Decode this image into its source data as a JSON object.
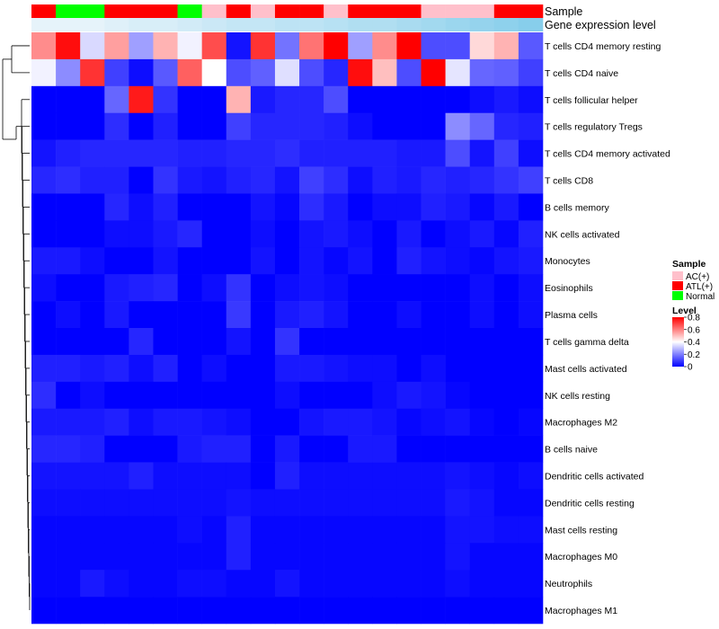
{
  "chart_data": {
    "type": "heatmap",
    "title": "",
    "rows": [
      "T cells CD4 memory resting",
      "T cells CD4 naive",
      "T cells follicular helper",
      "T cells regulatory  Tregs",
      "T cells CD4 memory activated",
      "T cells CD8",
      "B cells memory",
      "NK cells activated",
      "Monocytes",
      "Eosinophils",
      "Plasma cells",
      "T cells gamma delta",
      "Mast cells activated",
      "NK cells resting",
      "Macrophages M2",
      "B cells naive",
      "Dendritic cells activated",
      "Dendritic cells resting",
      "Mast cells resting",
      "Macrophages M0",
      "Neutrophils",
      "Macrophages M1"
    ],
    "column_annotations": {
      "sample": {
        "label": "Sample",
        "values": [
          "ATL(+)",
          "Normal",
          "Normal",
          "ATL(+)",
          "ATL(+)",
          "ATL(+)",
          "Normal",
          "AC(+)",
          "ATL(+)",
          "AC(+)",
          "ATL(+)",
          "ATL(+)",
          "AC(+)",
          "ATL(+)",
          "ATL(+)",
          "ATL(+)",
          "AC(+)",
          "AC(+)",
          "AC(+)",
          "ATL(+)",
          "ATL(+)"
        ]
      },
      "gene_expression": {
        "label": "Gene expression level",
        "values": [
          0.15,
          0.15,
          0.15,
          0.2,
          0.25,
          0.25,
          0.3,
          0.35,
          0.4,
          0.4,
          0.45,
          0.45,
          0.5,
          0.55,
          0.55,
          0.6,
          0.65,
          0.7,
          0.75,
          0.8,
          0.85
        ]
      }
    },
    "values": [
      [
        0.58,
        0.78,
        0.34,
        0.55,
        0.25,
        0.52,
        0.38,
        0.68,
        0.03,
        0.72,
        0.18,
        0.62,
        0.8,
        0.25,
        0.58,
        0.8,
        0.12,
        0.12,
        0.46,
        0.52,
        0.14
      ],
      [
        0.38,
        0.22,
        0.72,
        0.1,
        0.02,
        0.14,
        0.65,
        0.4,
        0.12,
        0.15,
        0.35,
        0.12,
        0.06,
        0.78,
        0.5,
        0.12,
        0.8,
        0.36,
        0.16,
        0.15,
        0.1
      ],
      [
        0,
        0,
        0,
        0.16,
        0.76,
        0.08,
        0,
        0,
        0.52,
        0.04,
        0.06,
        0.06,
        0.12,
        0,
        0,
        0,
        0,
        0,
        0.02,
        0.04,
        0.02
      ],
      [
        0,
        0,
        0,
        0.07,
        0,
        0.05,
        0,
        0,
        0.1,
        0.06,
        0.06,
        0.06,
        0.05,
        0.02,
        0,
        0,
        0,
        0.22,
        0.16,
        0.06,
        0.05
      ],
      [
        0.03,
        0.05,
        0.06,
        0.06,
        0.06,
        0.06,
        0.05,
        0.05,
        0.06,
        0.06,
        0.07,
        0.05,
        0.05,
        0.05,
        0.05,
        0.04,
        0.04,
        0.12,
        0.03,
        0.1,
        0.02
      ],
      [
        0.06,
        0.07,
        0.05,
        0.05,
        0,
        0.08,
        0.04,
        0.03,
        0.05,
        0.06,
        0.03,
        0.1,
        0.07,
        0.02,
        0.05,
        0.04,
        0.06,
        0.05,
        0.06,
        0.08,
        0.1
      ],
      [
        0,
        0,
        0,
        0.06,
        0.02,
        0.05,
        0,
        0,
        0,
        0.03,
        0.01,
        0.07,
        0.04,
        0,
        0.02,
        0.02,
        0.05,
        0.04,
        0.01,
        0.04,
        0
      ],
      [
        0,
        0,
        0,
        0.02,
        0.02,
        0.04,
        0.06,
        0,
        0,
        0.02,
        0,
        0.03,
        0.04,
        0.02,
        0,
        0.04,
        0,
        0.02,
        0.04,
        0.01,
        0.05
      ],
      [
        0.04,
        0.04,
        0.02,
        0,
        0,
        0.03,
        0,
        0,
        0,
        0.03,
        0,
        0.03,
        0.01,
        0.03,
        0,
        0.05,
        0.03,
        0.02,
        0.01,
        0.03,
        0.04
      ],
      [
        0.02,
        0,
        0,
        0.04,
        0.05,
        0.06,
        0,
        0.02,
        0.08,
        0,
        0.02,
        0.03,
        0.02,
        0,
        0,
        0,
        0,
        0,
        0.02,
        0,
        0.02
      ],
      [
        0,
        0.02,
        0,
        0.04,
        0,
        0,
        0,
        0,
        0.09,
        0,
        0.04,
        0.05,
        0.03,
        0,
        0,
        0.02,
        0,
        0,
        0.02,
        0,
        0.02
      ],
      [
        0,
        0,
        0,
        0,
        0.06,
        0,
        0,
        0,
        0.03,
        0,
        0.08,
        0,
        0,
        0,
        0,
        0,
        0,
        0,
        0,
        0,
        0
      ],
      [
        0.05,
        0.05,
        0.04,
        0.05,
        0.02,
        0.05,
        0,
        0.02,
        0,
        0,
        0.04,
        0.04,
        0.03,
        0.02,
        0.02,
        0,
        0.02,
        0,
        0,
        0,
        0
      ],
      [
        0.07,
        0,
        0.02,
        0,
        0,
        0,
        0,
        0,
        0,
        0,
        0.02,
        0,
        0,
        0,
        0.02,
        0.04,
        0.03,
        0.01,
        0,
        0,
        0
      ],
      [
        0.04,
        0.04,
        0.04,
        0.05,
        0.02,
        0.04,
        0.04,
        0.03,
        0.02,
        0,
        0,
        0.03,
        0.04,
        0.04,
        0.03,
        0.01,
        0.02,
        0.03,
        0.01,
        0,
        0.01
      ],
      [
        0.06,
        0.06,
        0.05,
        0,
        0,
        0,
        0.04,
        0.05,
        0.05,
        0,
        0.04,
        0,
        0,
        0.04,
        0.04,
        0,
        0,
        0,
        0,
        0,
        0
      ],
      [
        0.03,
        0.03,
        0.03,
        0.03,
        0.05,
        0.02,
        0.02,
        0.02,
        0.02,
        0,
        0.05,
        0.02,
        0.02,
        0.02,
        0.02,
        0.02,
        0.02,
        0.03,
        0.02,
        0.01,
        0.02
      ],
      [
        0.02,
        0.02,
        0.02,
        0.02,
        0.02,
        0.02,
        0.02,
        0.02,
        0.03,
        0.02,
        0.02,
        0.02,
        0.02,
        0.02,
        0.02,
        0.02,
        0.02,
        0.04,
        0.03,
        0.01,
        0.01
      ],
      [
        0.01,
        0.01,
        0.01,
        0.01,
        0.01,
        0.01,
        0.02,
        0.01,
        0.05,
        0.01,
        0.01,
        0.01,
        0.01,
        0.01,
        0.01,
        0.01,
        0.01,
        0.03,
        0.03,
        0.02,
        0.02
      ],
      [
        0.01,
        0.01,
        0.01,
        0.01,
        0.01,
        0.01,
        0.01,
        0.01,
        0.05,
        0.01,
        0.01,
        0.01,
        0.01,
        0.01,
        0.01,
        0.01,
        0.01,
        0.03,
        0.01,
        0.01,
        0.01
      ],
      [
        0.01,
        0.01,
        0.04,
        0.02,
        0.01,
        0.01,
        0.02,
        0.02,
        0.01,
        0.01,
        0.03,
        0.01,
        0.01,
        0.01,
        0.01,
        0.01,
        0.01,
        0.02,
        0.01,
        0.01,
        0.01
      ],
      [
        0,
        0,
        0,
        0,
        0,
        0,
        0,
        0,
        0,
        0,
        0,
        0,
        0,
        0,
        0,
        0,
        0,
        0,
        0,
        0,
        0
      ]
    ],
    "legend_sample": {
      "title": "Sample",
      "entries": [
        {
          "label": "AC(+)",
          "color": "#FFC0CB"
        },
        {
          "label": "ATL(+)",
          "color": "#FF0000"
        },
        {
          "label": "Normal",
          "color": "#00FF00"
        }
      ]
    },
    "legend_level": {
      "title": "Level",
      "ticks": [
        0.8,
        0.6,
        0.4,
        0.2,
        0
      ],
      "range": [
        0,
        0.8
      ]
    },
    "colors": {
      "low": "#0000FF",
      "mid": "#FFFFFF",
      "high": "#FF0000",
      "expr_low": "#E6F3FA",
      "expr_high": "#87CEEB"
    }
  }
}
